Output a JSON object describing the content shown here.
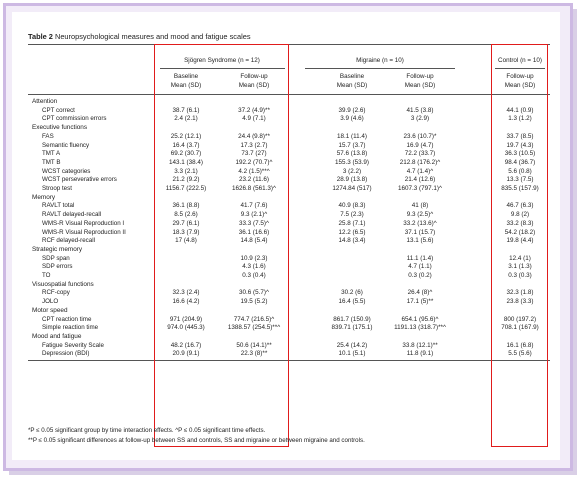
{
  "caption": {
    "number": "Table 2",
    "text": "Neuropsychological measures and mood and fatigue scales"
  },
  "groups": {
    "sjogren": "Sjögren Syndrome (n = 12)",
    "migraine": "Migraine (n = 10)",
    "control": "Control (n = 10)"
  },
  "subheaders": {
    "baseline": "Baseline",
    "followup": "Follow-up",
    "mean_sd": "Mean (SD)"
  },
  "sections": [
    {
      "title": "Attention",
      "rows": [
        {
          "label": "CPT correct",
          "ss_b": "38.7 (6.1)",
          "ss_f": "37.2 (4.9)**",
          "m_b": "39.9 (2.6)",
          "m_f": "41.5 (3.8)",
          "c": "44.1 (0.9)"
        },
        {
          "label": "CPT commission errors",
          "ss_b": "2.4 (2.1)",
          "ss_f": "4.9 (7.1)",
          "m_b": "3.9 (4.6)",
          "m_f": "3 (2.9)",
          "c": "1.3 (1.2)"
        }
      ]
    },
    {
      "title": "Executive functions",
      "rows": [
        {
          "label": "FAS",
          "ss_b": "25.2 (12.1)",
          "ss_f": "24.4 (9.8)**",
          "m_b": "18.1 (11.4)",
          "m_f": "23.6 (10.7)*",
          "c": "33.7 (8.5)"
        },
        {
          "label": "Semantic fluency",
          "ss_b": "16.4 (3.7)",
          "ss_f": "17.3 (2.7)",
          "m_b": "15.7 (3.7)",
          "m_f": "16.9 (4.7)",
          "c": "19.7 (4.3)"
        },
        {
          "label": "TMT A",
          "ss_b": "69.2 (30.7)",
          "ss_f": "73.7 (27)",
          "m_b": "57.6 (13.8)",
          "m_f": "72.2 (33.7)",
          "c": "36.3 (10.5)"
        },
        {
          "label": "TMT B",
          "ss_b": "143.1 (38.4)",
          "ss_f": "192.2 (70.7)^",
          "m_b": "155.3 (53.9)",
          "m_f": "212.8 (176.2)^",
          "c": "98.4 (36.7)"
        },
        {
          "label": "WCST categories",
          "ss_b": "3.3 (2.1)",
          "ss_f": "4.2 (1.5)**^",
          "m_b": "3 (2.2)",
          "m_f": "4.7 (1.4)^",
          "c": "5.6 (0.8)"
        },
        {
          "label": "WCST perseverative errors",
          "ss_b": "21.2 (9.2)",
          "ss_f": "23.2 (11.6)",
          "m_b": "28.9 (13.8)",
          "m_f": "21.4 (12.6)",
          "c": "13.3 (7.5)"
        },
        {
          "label": "Stroop test",
          "ss_b": "1156.7 (222.5)",
          "ss_f": "1626.8 (561.3)^",
          "m_b": "1274.84 (517)",
          "m_f": "1607.3 (797.1)^",
          "c": "835.5 (157.9)"
        }
      ]
    },
    {
      "title": "Memory",
      "rows": [
        {
          "label": "RAVLT total",
          "ss_b": "36.1 (8.8)",
          "ss_f": "41.7 (7.6)",
          "m_b": "40.9 (8.3)",
          "m_f": "41 (8)",
          "c": "46.7 (6.3)"
        },
        {
          "label": "RAVLT delayed-recall",
          "ss_b": "8.5 (2.6)",
          "ss_f": "9.3 (2.1)^",
          "m_b": "7.5 (2.3)",
          "m_f": "9.3 (2.5)^",
          "c": "9.8 (2)"
        },
        {
          "label": "WMS-R Visual Reproduction I",
          "ss_b": "29.7 (6.1)",
          "ss_f": "33.3 (7.5)^",
          "m_b": "25.8 (7.1)",
          "m_f": "33.2 (13.6)^",
          "c": "33.2 (8.3)"
        },
        {
          "label": "WMS-R Visual Reproduction II",
          "ss_b": "18.3 (7.9)",
          "ss_f": "36.1 (16.6)",
          "m_b": "12.2 (6.5)",
          "m_f": "37.1 (15.7)",
          "c": "54.2 (18.2)"
        },
        {
          "label": "RCF delayed-recall",
          "ss_b": "17 (4.8)",
          "ss_f": "14.8 (5.4)",
          "m_b": "14.8 (3.4)",
          "m_f": "13.1 (5.6)",
          "c": "19.8 (4.4)"
        }
      ]
    },
    {
      "title": "Strategic memory",
      "rows": [
        {
          "label": "SDP span",
          "ss_b": "",
          "ss_f": "10.9 (2.3)",
          "m_b": "",
          "m_f": "11.1 (1.4)",
          "c": "12.4 (1)"
        },
        {
          "label": "SDP errors",
          "ss_b": "",
          "ss_f": "4.3 (1.6)",
          "m_b": "",
          "m_f": "4.7 (1.1)",
          "c": "3.1 (1.3)"
        },
        {
          "label": "TO",
          "ss_b": "",
          "ss_f": "0.3 (0.4)",
          "m_b": "",
          "m_f": "0.3 (0.2)",
          "c": "0.3 (0.3)"
        }
      ]
    },
    {
      "title": "Visuospatial functions",
      "rows": [
        {
          "label": "RCF-copy",
          "ss_b": "32.3 (2.4)",
          "ss_f": "30.6 (5.7)^",
          "m_b": "30.2 (6)",
          "m_f": "26.4 (8)^",
          "c": "32.3 (1.8)"
        },
        {
          "label": "JOLO",
          "ss_b": "16.6 (4.2)",
          "ss_f": "19.5 (5.2)",
          "m_b": "16.4 (5.5)",
          "m_f": "17.1 (5)**",
          "c": "23.8 (3.3)"
        }
      ]
    },
    {
      "title": "Motor speed",
      "rows": [
        {
          "label": "CPT reaction time",
          "ss_b": "971 (204.9)",
          "ss_f": "774.7 (216.5)^",
          "m_b": "861.7 (150.9)",
          "m_f": "654.1 (95.6)^",
          "c": "800 (197.2)"
        },
        {
          "label": "Simple reaction time",
          "ss_b": "974.0 (445.3)",
          "ss_f": "1388.57 (254.5)**^",
          "m_b": "839.71 (175.1)",
          "m_f": "1191.13 (318.7)**^",
          "c": "708.1 (167.9)"
        }
      ]
    },
    {
      "title": "Mood and fatigue",
      "rows": [
        {
          "label": "Fatigue Severity Scale",
          "ss_b": "48.2 (16.7)",
          "ss_f": "50.6 (14.1)**",
          "m_b": "25.4 (14.2)",
          "m_f": "33.8 (12.1)**",
          "c": "16.1 (6.8)"
        },
        {
          "label": "Depression (BDI)",
          "ss_b": "20.9 (9.1)",
          "ss_f": "22.3 (8)**",
          "m_b": "10.1 (5.1)",
          "m_f": "11.8 (9.1)",
          "c": "5.5 (5.6)"
        }
      ]
    }
  ],
  "footnotes": [
    "*P ≤ 0.05 significant group by time interaction effects. ^P ≤ 0.05 significant time effects.",
    "**P ≤ 0.05 significant differences at follow-up between SS and controls, SS and migraine or between migraine and controls."
  ],
  "colors": {
    "highlight": "#e01b1b",
    "frame": "#cdb9e3"
  }
}
